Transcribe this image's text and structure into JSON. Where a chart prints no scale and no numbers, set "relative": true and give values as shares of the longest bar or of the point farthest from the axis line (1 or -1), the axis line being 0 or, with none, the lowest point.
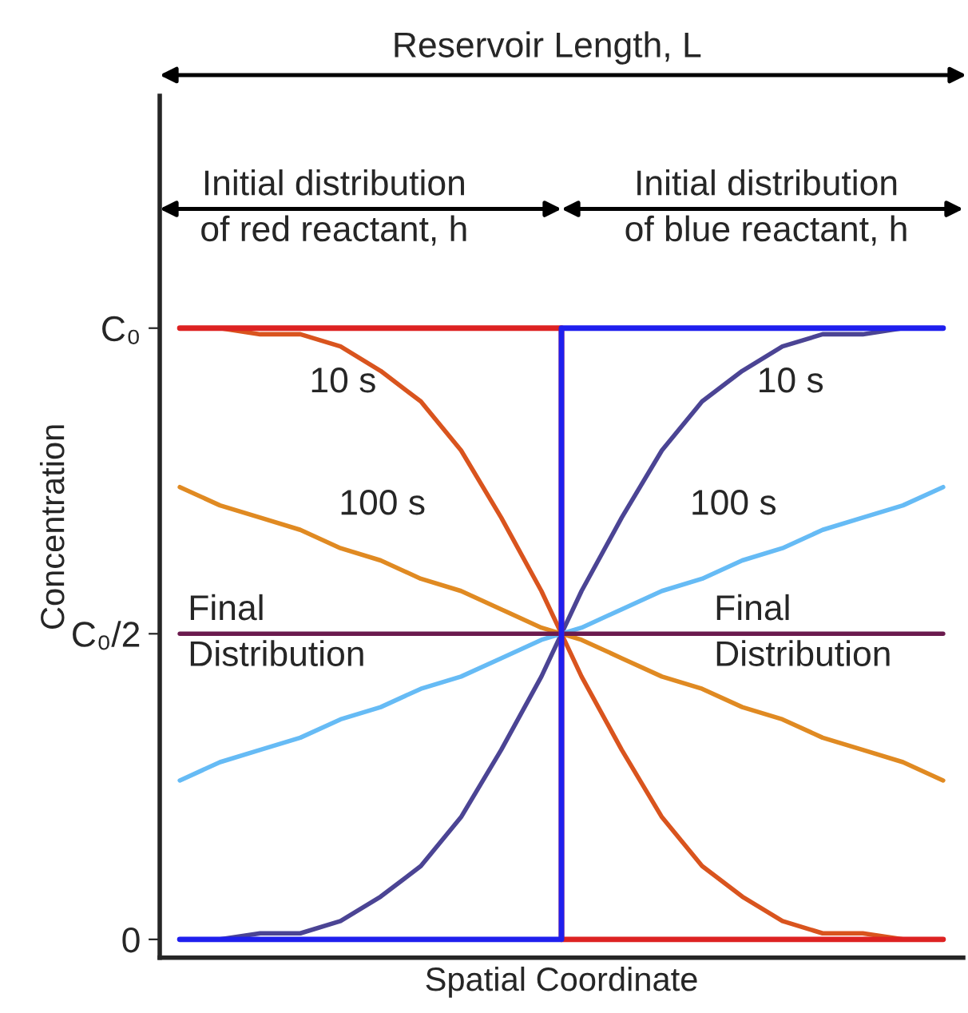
{
  "chart_data": {
    "type": "line",
    "xlabel": "Spatial Coordinate",
    "ylabel": "Concentration",
    "categories": [
      null,
      null,
      null,
      null,
      null,
      null,
      null,
      null,
      null,
      null,
      null,
      null,
      null,
      null,
      null,
      null,
      null,
      null,
      null,
      null
    ],
    "series": [
      {
        "color": "#d9541e",
        "values": [
          1.0,
          1.0,
          0.99,
          0.99,
          0.97,
          0.93,
          0.88,
          0.8,
          0.69,
          0.57,
          0.43,
          0.31,
          0.2,
          0.12,
          0.07,
          0.03,
          0.01,
          0.01,
          0.0,
          0.0
        ]
      },
      {
        "color": "#4b4494",
        "values": [
          0.0,
          0.0,
          0.01,
          0.01,
          0.03,
          0.07,
          0.12,
          0.2,
          0.31,
          0.43,
          0.57,
          0.69,
          0.8,
          0.88,
          0.93,
          0.97,
          0.99,
          0.99,
          1.0,
          1.0
        ]
      },
      {
        "color": "#e08a22",
        "values": [
          0.74,
          0.71,
          0.69,
          0.67,
          0.64,
          0.62,
          0.59,
          0.57,
          0.54,
          0.51,
          0.49,
          0.46,
          0.43,
          0.41,
          0.38,
          0.36,
          0.33,
          0.31,
          0.29,
          0.26
        ]
      },
      {
        "color": "#66bbf5",
        "values": [
          0.26,
          0.29,
          0.31,
          0.33,
          0.36,
          0.38,
          0.41,
          0.43,
          0.46,
          0.49,
          0.51,
          0.54,
          0.57,
          0.59,
          0.62,
          0.64,
          0.67,
          0.69,
          0.71,
          0.74
        ]
      },
      {
        "color": "#6b1a4e",
        "values": [
          0.5,
          0.5,
          0.5,
          0.5,
          0.5,
          0.5,
          0.5,
          0.5,
          0.5,
          0.5,
          0.5,
          0.5,
          0.5,
          0.5,
          0.5,
          0.5,
          0.5,
          0.5,
          0.5,
          0.5
        ]
      },
      {
        "type": "step",
        "color": "#dd2222",
        "values": [
          1,
          1,
          1,
          1,
          1,
          1,
          1,
          1,
          1,
          1,
          0,
          0,
          0,
          0,
          0,
          0,
          0,
          0,
          0,
          0
        ]
      },
      {
        "type": "step",
        "color": "#1f1fee",
        "values": [
          0,
          0,
          0,
          0,
          0,
          0,
          0,
          0,
          0,
          0,
          1,
          1,
          1,
          1,
          1,
          1,
          1,
          1,
          1,
          1
        ]
      }
    ],
    "relative": true,
    "tick_labels": false,
    "grid": false,
    "legend": false,
    "marker": "none",
    "line_style": "solid",
    "annotations": [
      "Reservoir Length, L",
      "Initial distribution\nof red reactant, h",
      "Initial distribution\nof blue reactant, h",
      "10 s",
      "10 s",
      "100 s",
      "100 s",
      "Final\nDistribution",
      "Final\nDistribution",
      "0",
      "C₀/2",
      "C₀"
    ]
  }
}
